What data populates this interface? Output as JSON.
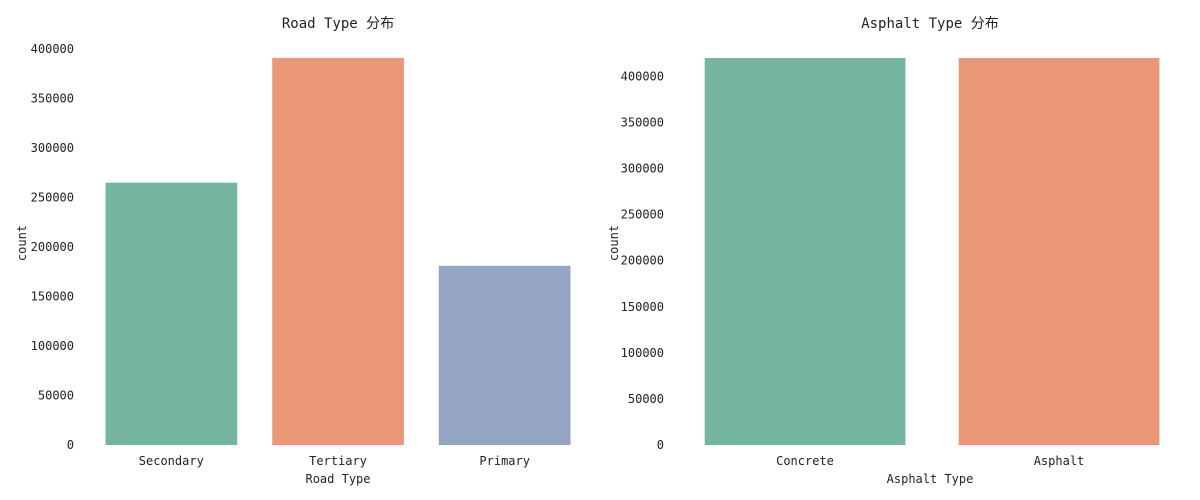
{
  "chart_data": [
    {
      "type": "bar",
      "title": "Road Type 分布",
      "xlabel": "Road Type",
      "ylabel": "count",
      "categories": [
        "Secondary",
        "Tertiary",
        "Primary"
      ],
      "values": [
        265000,
        391000,
        181000
      ],
      "ylim": [
        0,
        400000
      ],
      "yticks": [
        "0",
        "50000",
        "100000",
        "150000",
        "200000",
        "250000",
        "300000",
        "350000",
        "400000"
      ],
      "colors": [
        "#73b59f",
        "#e99774",
        "#94a4c3"
      ],
      "grid": false
    },
    {
      "type": "bar",
      "title": "Asphalt Type 分布",
      "xlabel": "Asphalt Type",
      "ylabel": "count",
      "categories": [
        "Concrete",
        "Asphalt"
      ],
      "values": [
        420000,
        420000
      ],
      "ylim": [
        0,
        420000
      ],
      "yticks": [
        "0",
        "50000",
        "100000",
        "150000",
        "200000",
        "250000",
        "300000",
        "350000",
        "400000"
      ],
      "colors": [
        "#73b59f",
        "#e99774"
      ],
      "grid": false
    }
  ]
}
